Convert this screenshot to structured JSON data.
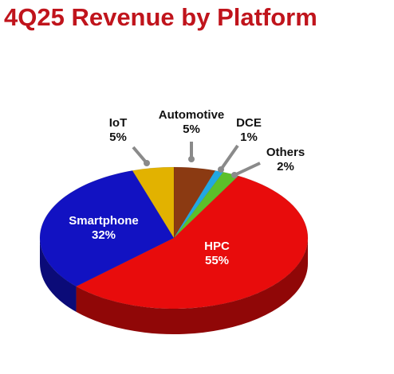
{
  "chart_data": {
    "type": "pie",
    "title": "4Q25 Revenue by Platform",
    "categories": [
      "Automotive",
      "DCE",
      "Others",
      "HPC",
      "Smartphone",
      "IoT"
    ],
    "values": [
      5,
      1,
      2,
      55,
      32,
      5
    ],
    "value_labels": [
      "5%",
      "1%",
      "2%",
      "55%",
      "32%",
      "5%"
    ],
    "colors": [
      "#8b3a12",
      "#22a8e2",
      "#5cc02a",
      "#e80c0c",
      "#1212c2",
      "#e2b200"
    ]
  }
}
